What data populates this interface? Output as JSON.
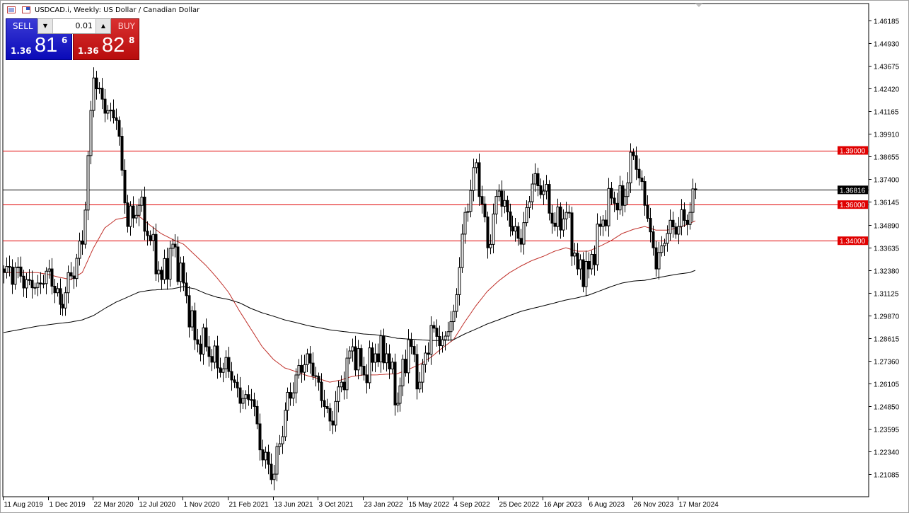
{
  "window": {
    "title": "USDCAD.i, Weekly:  US Dollar / Canadian Dollar"
  },
  "trade_panel": {
    "sell_label": "SELL",
    "buy_label": "BUY",
    "lot_value": "0.01",
    "sell_price": {
      "prefix": "1.36",
      "big": "81",
      "sup": "6"
    },
    "buy_price": {
      "prefix": "1.36",
      "big": "82",
      "sup": "8"
    }
  },
  "chart_data": {
    "type": "candlestick",
    "symbol": "USDCAD.i",
    "timeframe": "Weekly",
    "ylim": [
      1.1983,
      1.4713
    ],
    "y_ticks": [
      "1.46185",
      "1.44930",
      "1.43675",
      "1.42420",
      "1.41165",
      "1.39910",
      "1.38655",
      "1.37400",
      "1.36145",
      "1.34890",
      "1.33635",
      "1.32380",
      "1.31125",
      "1.29870",
      "1.28615",
      "1.27360",
      "1.26105",
      "1.24850",
      "1.23595",
      "1.22340",
      "1.21085"
    ],
    "x_ticks": [
      "11 Aug 2019",
      "1 Dec 2019",
      "22 Mar 2020",
      "12 Jul 2020",
      "1 Nov 2020",
      "21 Feb 2021",
      "13 Jun 2021",
      "3 Oct 2021",
      "23 Jan 2022",
      "15 May 2022",
      "4 Sep 2022",
      "25 Dec 2022",
      "16 Apr 2023",
      "6 Aug 2023",
      "26 Nov 2023",
      "17 Mar 2024"
    ],
    "dates": [
      "2019-08-11",
      "2019-09-08",
      "2019-10-06",
      "2019-11-03",
      "2019-12-01",
      "2019-12-29",
      "2020-01-26",
      "2020-02-23",
      "2020-03-22",
      "2020-04-19",
      "2020-05-17",
      "2020-06-14",
      "2020-07-12",
      "2020-08-09",
      "2020-09-06",
      "2020-10-04",
      "2020-11-01",
      "2020-11-29",
      "2020-12-27",
      "2021-01-24",
      "2021-02-21",
      "2021-03-21",
      "2021-04-18",
      "2021-05-16",
      "2021-06-13",
      "2021-07-11",
      "2021-08-08",
      "2021-09-05",
      "2021-10-03",
      "2021-10-31",
      "2021-11-28",
      "2021-12-26",
      "2022-01-23",
      "2022-02-20",
      "2022-03-20",
      "2022-04-17",
      "2022-05-15",
      "2022-06-12",
      "2022-07-10",
      "2022-08-07",
      "2022-09-04",
      "2022-10-02",
      "2022-10-30",
      "2022-11-27",
      "2022-12-25",
      "2023-01-22",
      "2023-02-19",
      "2023-03-19",
      "2023-04-16",
      "2023-05-14",
      "2023-06-11",
      "2023-07-09",
      "2023-08-06",
      "2023-09-03",
      "2023-10-01",
      "2023-10-29",
      "2023-11-26",
      "2023-12-24",
      "2024-01-21",
      "2024-02-18",
      "2024-03-17",
      "2024-04-14",
      "2024-04-28"
    ],
    "close": [
      1.3224,
      1.3252,
      1.3185,
      1.3166,
      1.3244,
      1.3048,
      1.3205,
      1.3381,
      1.4301,
      1.4106,
      1.4066,
      1.3479,
      1.3596,
      1.3401,
      1.3185,
      1.3381,
      1.3166,
      1.2852,
      1.2813,
      1.2696,
      1.2676,
      1.25,
      1.252,
      1.2187,
      1.2108,
      1.2461,
      1.2657,
      1.2774,
      1.2617,
      1.2402,
      1.2617,
      1.2813,
      1.2657,
      1.2774,
      1.2774,
      1.25,
      1.2852,
      1.2617,
      1.2931,
      1.2852,
      1.3009,
      1.3557,
      1.3832,
      1.3361,
      1.3675,
      1.3479,
      1.3381,
      1.3714,
      1.3675,
      1.3479,
      1.3557,
      1.3244,
      1.3244,
      1.3479,
      1.3636,
      1.3596,
      1.3871,
      1.3596,
      1.3244,
      1.344,
      1.3479,
      1.3557,
      1.3682
    ],
    "ma_red": [
      1.3224,
      1.3224,
      1.3224,
      1.3224,
      1.3213,
      1.3197,
      1.3185,
      1.3224,
      1.3361,
      1.3471,
      1.3518,
      1.353,
      1.3538,
      1.3487,
      1.344,
      1.3408,
      1.3381,
      1.3322,
      1.3263,
      1.3193,
      1.3115,
      1.3009,
      1.2911,
      1.2813,
      1.2743,
      1.2696,
      1.2676,
      1.2653,
      1.2637,
      1.2617,
      1.2629,
      1.2649,
      1.2657,
      1.2657,
      1.2661,
      1.2664,
      1.2688,
      1.2715,
      1.2755,
      1.2806,
      1.2852,
      1.295,
      1.304,
      1.3119,
      1.3177,
      1.3224,
      1.326,
      1.3291,
      1.3314,
      1.3342,
      1.3361,
      1.3342,
      1.3342,
      1.3369,
      1.34,
      1.344,
      1.3463,
      1.3479,
      1.3459,
      1.3459,
      1.3471,
      1.3495,
      1.351
    ],
    "ma_black": [
      1.2892,
      1.2903,
      1.2915,
      1.2927,
      1.2935,
      1.2943,
      1.295,
      1.2962,
      1.2986,
      1.3025,
      1.306,
      1.3087,
      1.3115,
      1.3126,
      1.313,
      1.3134,
      1.3146,
      1.3134,
      1.3107,
      1.3087,
      1.3075,
      1.3056,
      1.3025,
      1.3001,
      1.2982,
      1.2962,
      1.2947,
      1.2931,
      1.2919,
      1.2907,
      1.2899,
      1.2892,
      1.2884,
      1.288,
      1.2872,
      1.286,
      1.2856,
      1.2852,
      1.2848,
      1.2848,
      1.2852,
      1.2884,
      1.2911,
      1.2939,
      1.2962,
      1.2986,
      1.3009,
      1.3025,
      1.304,
      1.3056,
      1.3072,
      1.3084,
      1.3099,
      1.3122,
      1.3146,
      1.3166,
      1.3177,
      1.3181,
      1.3193,
      1.3205,
      1.3216,
      1.3224,
      1.3236
    ],
    "horizontal_levels": [
      {
        "price": 1.39,
        "label": "1.39000",
        "color": "#e00000"
      },
      {
        "price": 1.36,
        "label": "1.36000",
        "color": "#e00000"
      },
      {
        "price": 1.34,
        "label": "1.34000",
        "color": "#e00000"
      }
    ],
    "current_price": {
      "price": 1.36816,
      "label": "1.36816",
      "color": "#000000"
    },
    "colors": {
      "bull_body": "#ffffff",
      "bear_body": "#000000",
      "ma_red": "#c0302a",
      "ma_black": "#000000",
      "level": "#e00000"
    },
    "grid": false
  }
}
